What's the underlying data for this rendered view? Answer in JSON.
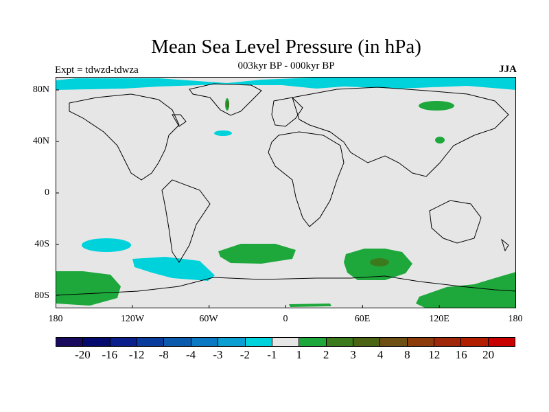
{
  "title": "Mean Sea Level Pressure (in hPa)",
  "subtitle": "003kyr BP - 000kyr BP",
  "experiment": "Expt = tdwzd-tdwza",
  "season": "JJA",
  "lat_labels": [
    "80N",
    "40N",
    "0",
    "40S",
    "80S"
  ],
  "lon_labels": [
    "180",
    "120W",
    "60W",
    "0",
    "60E",
    "120E",
    "180"
  ],
  "colorbar": {
    "colors": [
      "#1a0a5e",
      "#050a6e",
      "#0a1e8c",
      "#0a3c9e",
      "#0a5aae",
      "#0a78c2",
      "#0a9ed2",
      "#00d2dc",
      "#e6e6e6",
      "#1ea83c",
      "#3c7a1e",
      "#4a6414",
      "#6e5014",
      "#8c3c0a",
      "#a0280a",
      "#b41e00",
      "#c80000"
    ],
    "labels": [
      "-20",
      "-16",
      "-12",
      "-8",
      "-4",
      "-3",
      "-2",
      "-1",
      "1",
      "2",
      "3",
      "4",
      "8",
      "12",
      "16",
      "20"
    ]
  },
  "map_colors": {
    "background": "#e6e6e6",
    "neg_light": "#00d2dc",
    "pos_light": "#1ea83c",
    "pos_mid": "#3c7a1e",
    "pos_dark": "#6e5014",
    "coast": "#000000"
  },
  "chart_data": {
    "type": "heatmap",
    "title": "Mean Sea Level Pressure (in hPa)",
    "subtitle": "003kyr BP - 000kyr BP",
    "experiment": "Expt = tdwzd-tdwza",
    "season": "JJA",
    "x_range": [
      -180,
      180
    ],
    "y_range": [
      -90,
      90
    ],
    "x_ticks": [
      "180",
      "120W",
      "60W",
      "0",
      "60E",
      "120E",
      "180"
    ],
    "y_ticks": [
      "80N",
      "40N",
      "0",
      "40S",
      "80S"
    ],
    "contour_levels": [
      -20,
      -16,
      -12,
      -8,
      -4,
      -3,
      -2,
      -1,
      1,
      2,
      3,
      4,
      8,
      12,
      16,
      20
    ]
  }
}
